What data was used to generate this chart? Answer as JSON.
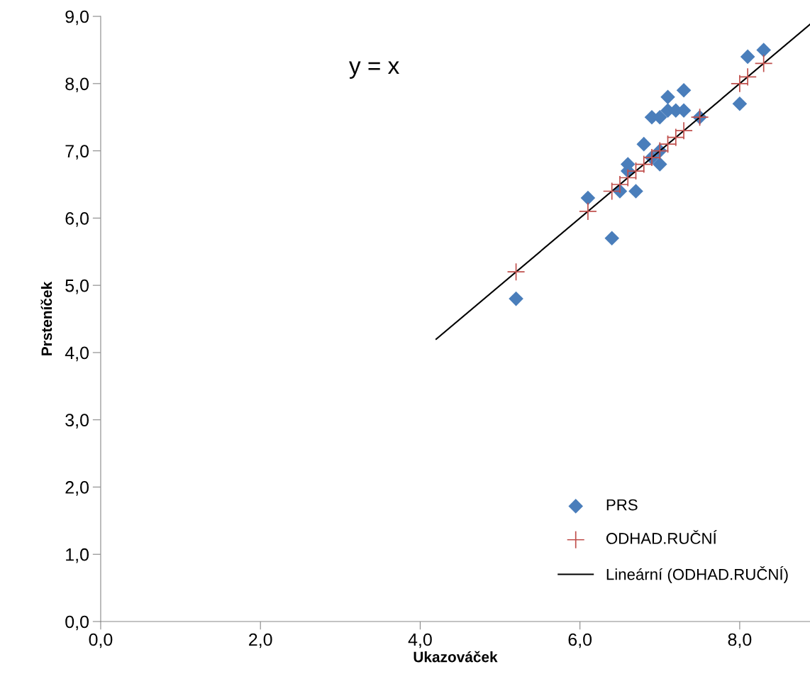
{
  "chart_data": {
    "type": "scatter",
    "xlabel": "Ukazováček",
    "ylabel": "Prsteníček",
    "annotations": [
      "y = x"
    ],
    "xlim": [
      0,
      8.88
    ],
    "ylim": [
      0,
      9
    ],
    "xticks": [
      {
        "value": 0,
        "label": "0,0"
      },
      {
        "value": 2,
        "label": "2,0"
      },
      {
        "value": 4,
        "label": "4,0"
      },
      {
        "value": 6,
        "label": "6,0"
      },
      {
        "value": 8,
        "label": "8,0"
      }
    ],
    "yticks": [
      {
        "value": 0,
        "label": "0,0"
      },
      {
        "value": 1,
        "label": "1,0"
      },
      {
        "value": 2,
        "label": "2,0"
      },
      {
        "value": 3,
        "label": "3,0"
      },
      {
        "value": 4,
        "label": "4,0"
      },
      {
        "value": 5,
        "label": "5,0"
      },
      {
        "value": 6,
        "label": "6,0"
      },
      {
        "value": 7,
        "label": "7,0"
      },
      {
        "value": 8,
        "label": "8,0"
      },
      {
        "value": 9,
        "label": "9,0"
      }
    ],
    "grid": false,
    "legend": "bottom right",
    "series": [
      {
        "name": "PRS",
        "marker": "diamond",
        "color": "#4a7ebb",
        "x": [
          5.2,
          6.1,
          6.4,
          6.5,
          6.6,
          6.6,
          6.7,
          6.8,
          6.9,
          6.9,
          7.0,
          7.0,
          7.0,
          7.1,
          7.1,
          7.2,
          7.3,
          7.3,
          7.5,
          8.0,
          8.1,
          8.3
        ],
        "values": [
          4.8,
          6.3,
          5.7,
          6.4,
          6.7,
          6.8,
          6.4,
          7.1,
          7.5,
          6.9,
          7.0,
          6.8,
          7.5,
          7.8,
          7.6,
          7.6,
          7.9,
          7.6,
          7.5,
          7.7,
          8.4,
          8.5
        ]
      },
      {
        "name": "ODHAD.RUČNÍ",
        "marker": "cross",
        "color": "#c0504d",
        "x": [
          5.2,
          6.1,
          6.4,
          6.5,
          6.6,
          6.7,
          6.8,
          6.9,
          7.0,
          7.1,
          7.2,
          7.3,
          7.5,
          8.0,
          8.1,
          8.3
        ],
        "values": [
          5.2,
          6.1,
          6.4,
          6.5,
          6.6,
          6.7,
          6.8,
          6.9,
          7.0,
          7.1,
          7.2,
          7.3,
          7.5,
          8.0,
          8.1,
          8.3
        ]
      },
      {
        "name": "Lineární (ODHAD.RUČNÍ)",
        "type": "line",
        "marker": "none",
        "line_style": "solid",
        "color": "#000000",
        "x": [
          4.2,
          8.88
        ],
        "values": [
          4.2,
          8.88
        ]
      }
    ]
  }
}
